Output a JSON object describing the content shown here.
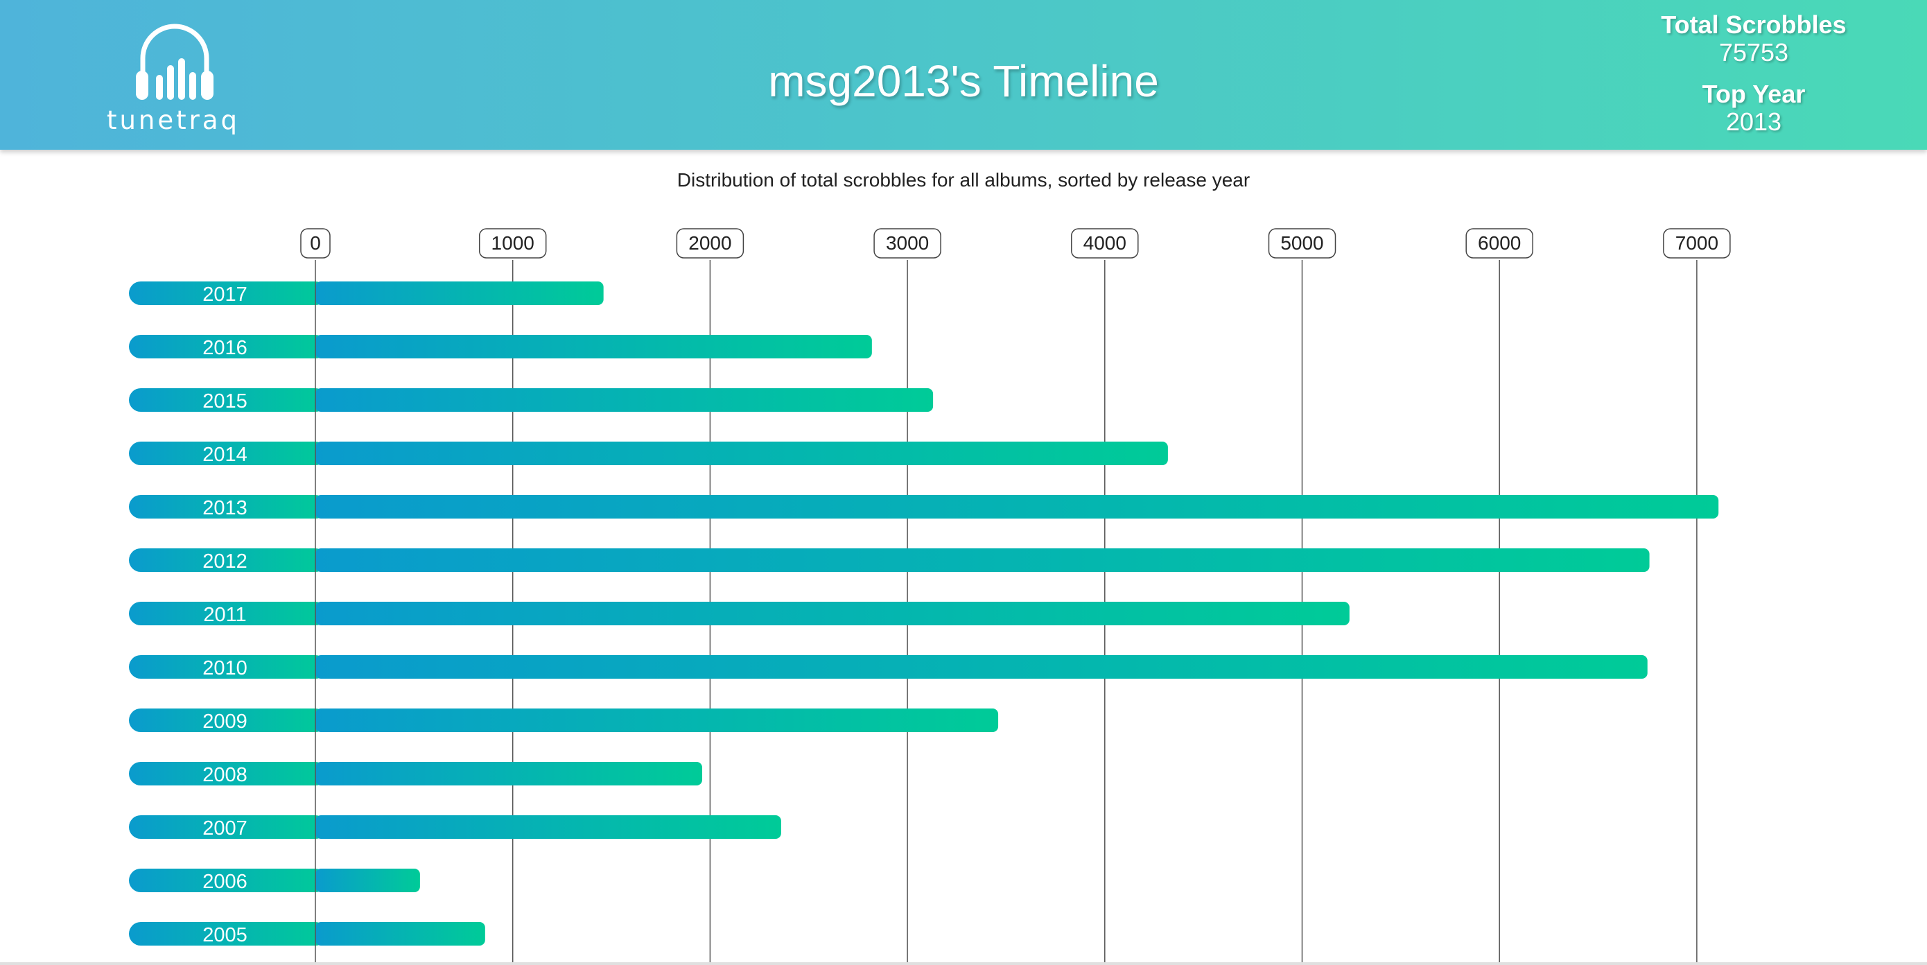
{
  "header": {
    "logo_text": "tunetraq",
    "title": "msg2013's Timeline",
    "total_scrobbles_label": "Total Scrobbles",
    "total_scrobbles_value": "75753",
    "top_year_label": "Top Year",
    "top_year_value": "2013"
  },
  "chart_data": {
    "type": "bar",
    "orientation": "horizontal",
    "title": "Distribution of total scrobbles for all albums, sorted by release year",
    "xlabel": "",
    "ylabel": "",
    "xlim": [
      0,
      7000
    ],
    "x_ticks": [
      "0",
      "1000",
      "2000",
      "3000",
      "4000",
      "5000",
      "6000",
      "7000"
    ],
    "grid": true,
    "categories": [
      "2017",
      "2016",
      "2015",
      "2014",
      "2013",
      "2012",
      "2011",
      "2010",
      "2009",
      "2008",
      "2007",
      "2006",
      "2005"
    ],
    "values": [
      1460,
      2820,
      3130,
      4320,
      7110,
      6760,
      5240,
      6750,
      3460,
      1960,
      2360,
      530,
      860
    ]
  },
  "colors": {
    "bar_start": "#0a9bcd",
    "bar_end": "#00cb98",
    "header_start": "#4fb4da",
    "header_end": "#4ad9b7",
    "grid": "#555555"
  }
}
